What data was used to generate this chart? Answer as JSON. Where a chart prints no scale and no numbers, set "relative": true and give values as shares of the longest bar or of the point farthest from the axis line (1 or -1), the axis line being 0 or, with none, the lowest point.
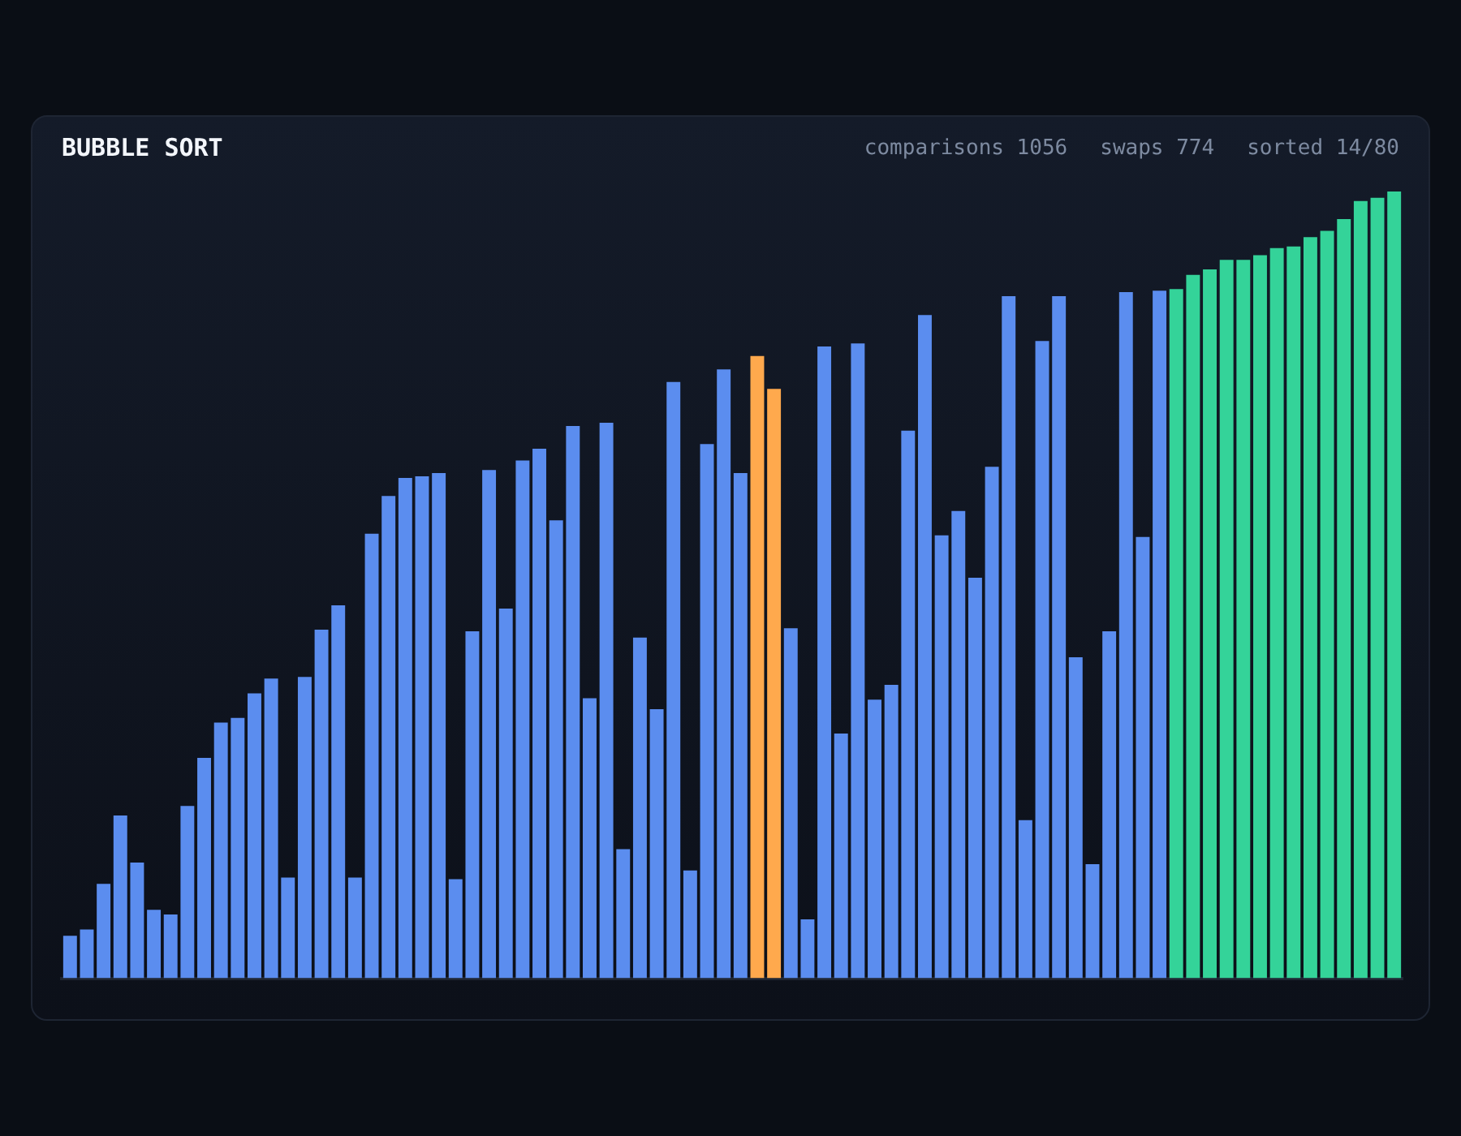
{
  "chart_data": {
    "type": "bar",
    "title": "BUBBLE SORT",
    "annotations": [
      "comparisons 1056",
      "swaps 774",
      "sorted 14/80"
    ],
    "relative": true,
    "legend": false,
    "categories": [
      null,
      null,
      null,
      null,
      null,
      null,
      null,
      null,
      null,
      null,
      null,
      null,
      null,
      null,
      null,
      null,
      null,
      null,
      null,
      null,
      null,
      null,
      null,
      null,
      null,
      null,
      null,
      null,
      null,
      null,
      null,
      null,
      null,
      null,
      null,
      null,
      null,
      null,
      null,
      null,
      null,
      null,
      null,
      null,
      null,
      null,
      null,
      null,
      null,
      null,
      null,
      null,
      null,
      null,
      null,
      null,
      null,
      null,
      null,
      null,
      null,
      null,
      null,
      null,
      null,
      null,
      null,
      null,
      null,
      null,
      null,
      null,
      null,
      null,
      null,
      null,
      null,
      null,
      null,
      null
    ],
    "values": [
      0.054,
      0.062,
      0.12,
      0.207,
      0.147,
      0.087,
      0.081,
      0.219,
      0.28,
      0.325,
      0.331,
      0.362,
      0.381,
      0.128,
      0.383,
      0.443,
      0.474,
      0.128,
      0.565,
      0.613,
      0.636,
      0.638,
      0.642,
      0.126,
      0.441,
      0.646,
      0.47,
      0.658,
      0.673,
      0.582,
      0.702,
      0.356,
      0.706,
      0.164,
      0.433,
      0.342,
      0.758,
      0.137,
      0.679,
      0.774,
      0.642,
      0.791,
      0.749,
      0.445,
      0.075,
      0.803,
      0.311,
      0.807,
      0.354,
      0.373,
      0.696,
      0.843,
      0.563,
      0.594,
      0.509,
      0.65,
      0.867,
      0.201,
      0.81,
      0.867,
      0.408,
      0.145,
      0.441,
      0.872,
      0.561,
      0.874,
      0.876,
      0.894,
      0.901,
      0.913,
      0.913,
      0.919,
      0.928,
      0.93,
      0.942,
      0.95,
      0.965,
      0.988,
      0.992,
      1
    ],
    "colors": [
      "#5b8def",
      "#5b8def",
      "#5b8def",
      "#5b8def",
      "#5b8def",
      "#5b8def",
      "#5b8def",
      "#5b8def",
      "#5b8def",
      "#5b8def",
      "#5b8def",
      "#5b8def",
      "#5b8def",
      "#5b8def",
      "#5b8def",
      "#5b8def",
      "#5b8def",
      "#5b8def",
      "#5b8def",
      "#5b8def",
      "#5b8def",
      "#5b8def",
      "#5b8def",
      "#5b8def",
      "#5b8def",
      "#5b8def",
      "#5b8def",
      "#5b8def",
      "#5b8def",
      "#5b8def",
      "#5b8def",
      "#5b8def",
      "#5b8def",
      "#5b8def",
      "#5b8def",
      "#5b8def",
      "#5b8def",
      "#5b8def",
      "#5b8def",
      "#5b8def",
      "#5b8def",
      "#ffa94d",
      "#ffa94d",
      "#5b8def",
      "#5b8def",
      "#5b8def",
      "#5b8def",
      "#5b8def",
      "#5b8def",
      "#5b8def",
      "#5b8def",
      "#5b8def",
      "#5b8def",
      "#5b8def",
      "#5b8def",
      "#5b8def",
      "#5b8def",
      "#5b8def",
      "#5b8def",
      "#5b8def",
      "#5b8def",
      "#5b8def",
      "#5b8def",
      "#5b8def",
      "#5b8def",
      "#5b8def",
      "#34d399",
      "#34d399",
      "#34d399",
      "#34d399",
      "#34d399",
      "#34d399",
      "#34d399",
      "#34d399",
      "#34d399",
      "#34d399",
      "#34d399",
      "#34d399",
      "#34d399",
      "#34d399"
    ]
  }
}
